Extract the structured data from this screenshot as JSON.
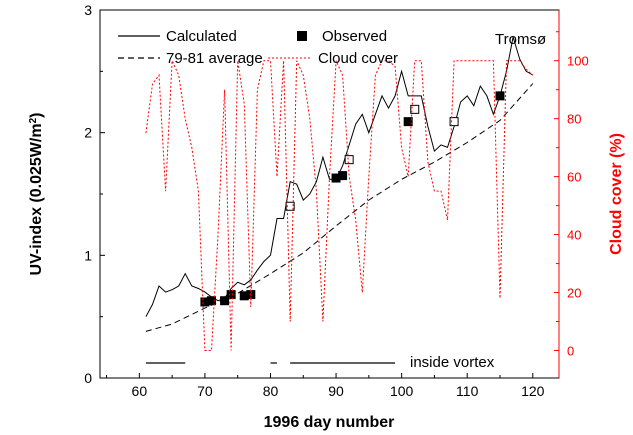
{
  "chart_data": {
    "type": "line",
    "xlabel": "1996 day number",
    "ylabel_left": "UV-index (0.025W/m",
    "ylabel_left_sup": "2",
    "ylabel_left_close": ")",
    "ylabel_right": "Cloud cover (%)",
    "xlim": [
      54,
      124
    ],
    "ylim_left": [
      0,
      3
    ],
    "ylim_right": [
      -9.5,
      117.5
    ],
    "x_ticks": [
      "60",
      "70",
      "80",
      "90",
      "100",
      "110",
      "120"
    ],
    "y_ticks_left": [
      "0",
      "1",
      "2",
      "3"
    ],
    "y_ticks_right": [
      "0",
      "20",
      "40",
      "60",
      "80",
      "100"
    ],
    "colors": {
      "left_axis": "#000000",
      "right_axis": "#ff0000",
      "cloud": "#ff0000"
    },
    "annotation": "Tromsø",
    "vortex_label": "inside vortex",
    "vortex_segments": [
      [
        61,
        67
      ],
      [
        80,
        81
      ],
      [
        83,
        99
      ]
    ],
    "legend": {
      "calculated": "Calculated",
      "average": "79-81 average",
      "observed": "Observed",
      "cloud": "Cloud cover"
    },
    "series": [
      {
        "name": "Calculated",
        "axis": "left",
        "style": "solid",
        "x": [
          61,
          62,
          63,
          64,
          65,
          66,
          67,
          68,
          69,
          70,
          71,
          72,
          73,
          74,
          75,
          76,
          77,
          78,
          79,
          80,
          81,
          82,
          83,
          84,
          85,
          86,
          87,
          88,
          89,
          90,
          91,
          92,
          93,
          94,
          95,
          96,
          97,
          98,
          99,
          100,
          101,
          102,
          103,
          104,
          105,
          106,
          107,
          108,
          109,
          110,
          111,
          112,
          113,
          114,
          115,
          116,
          117,
          118,
          119,
          120
        ],
        "y": [
          0.5,
          0.6,
          0.75,
          0.7,
          0.72,
          0.75,
          0.85,
          0.75,
          0.73,
          0.7,
          0.66,
          0.63,
          0.65,
          0.73,
          0.78,
          0.76,
          0.8,
          0.88,
          0.95,
          1.0,
          1.3,
          1.3,
          1.6,
          1.58,
          1.45,
          1.5,
          1.6,
          1.8,
          1.62,
          1.62,
          1.73,
          1.9,
          2.07,
          2.15,
          2.0,
          2.15,
          2.3,
          2.2,
          2.3,
          2.5,
          2.3,
          2.3,
          2.3,
          2.05,
          1.85,
          1.9,
          1.88,
          2.05,
          2.25,
          2.3,
          2.22,
          2.38,
          2.3,
          2.15,
          2.3,
          2.5,
          2.78,
          2.6,
          2.5,
          2.47
        ]
      },
      {
        "name": "79-81 average",
        "axis": "left",
        "style": "dashed",
        "x": [
          61,
          65,
          70,
          75,
          80,
          85,
          90,
          95,
          100,
          105,
          110,
          115,
          120
        ],
        "y": [
          0.38,
          0.44,
          0.57,
          0.69,
          0.85,
          1.02,
          1.24,
          1.45,
          1.62,
          1.76,
          1.92,
          2.1,
          2.4
        ]
      },
      {
        "name": "Observed",
        "axis": "left",
        "style": "marker",
        "points": [
          {
            "x": 70,
            "y": 0.62,
            "filled": true
          },
          {
            "x": 71,
            "y": 0.63,
            "filled": true
          },
          {
            "x": 73,
            "y": 0.63,
            "filled": true
          },
          {
            "x": 74,
            "y": 0.68,
            "filled": true
          },
          {
            "x": 76,
            "y": 0.67,
            "filled": true
          },
          {
            "x": 77,
            "y": 0.68,
            "filled": true
          },
          {
            "x": 83,
            "y": 1.4,
            "filled": false
          },
          {
            "x": 90,
            "y": 1.63,
            "filled": true
          },
          {
            "x": 91,
            "y": 1.65,
            "filled": true
          },
          {
            "x": 92,
            "y": 1.78,
            "filled": false
          },
          {
            "x": 101,
            "y": 2.09,
            "filled": true
          },
          {
            "x": 102,
            "y": 2.19,
            "filled": false
          },
          {
            "x": 108,
            "y": 2.09,
            "filled": false
          },
          {
            "x": 115,
            "y": 2.3,
            "filled": true
          }
        ]
      },
      {
        "name": "Cloud cover",
        "axis": "right",
        "style": "dotted",
        "x": [
          61,
          62,
          63,
          64,
          65,
          66,
          67,
          68,
          69,
          70,
          71,
          72,
          73,
          74,
          75,
          76,
          77,
          78,
          79,
          80,
          81,
          82,
          83,
          84,
          85,
          86,
          87,
          88,
          89,
          90,
          91,
          92,
          93,
          94,
          95,
          96,
          97,
          98,
          99,
          100,
          101,
          102,
          103,
          104,
          105,
          106,
          107,
          108,
          109,
          110,
          111,
          112,
          113,
          114,
          115,
          116,
          117,
          118,
          119,
          120
        ],
        "y": [
          75,
          92,
          95,
          55,
          100,
          95,
          80,
          70,
          55,
          0,
          0,
          40,
          90,
          0,
          100,
          85,
          15,
          90,
          100,
          100,
          60,
          100,
          10,
          100,
          95,
          80,
          55,
          10,
          60,
          100,
          95,
          60,
          45,
          20,
          60,
          95,
          100,
          100,
          98,
          70,
          60,
          100,
          100,
          65,
          55,
          55,
          45,
          100,
          100,
          100,
          100,
          100,
          100,
          100,
          18,
          100,
          100,
          100,
          97,
          95
        ]
      }
    ]
  }
}
